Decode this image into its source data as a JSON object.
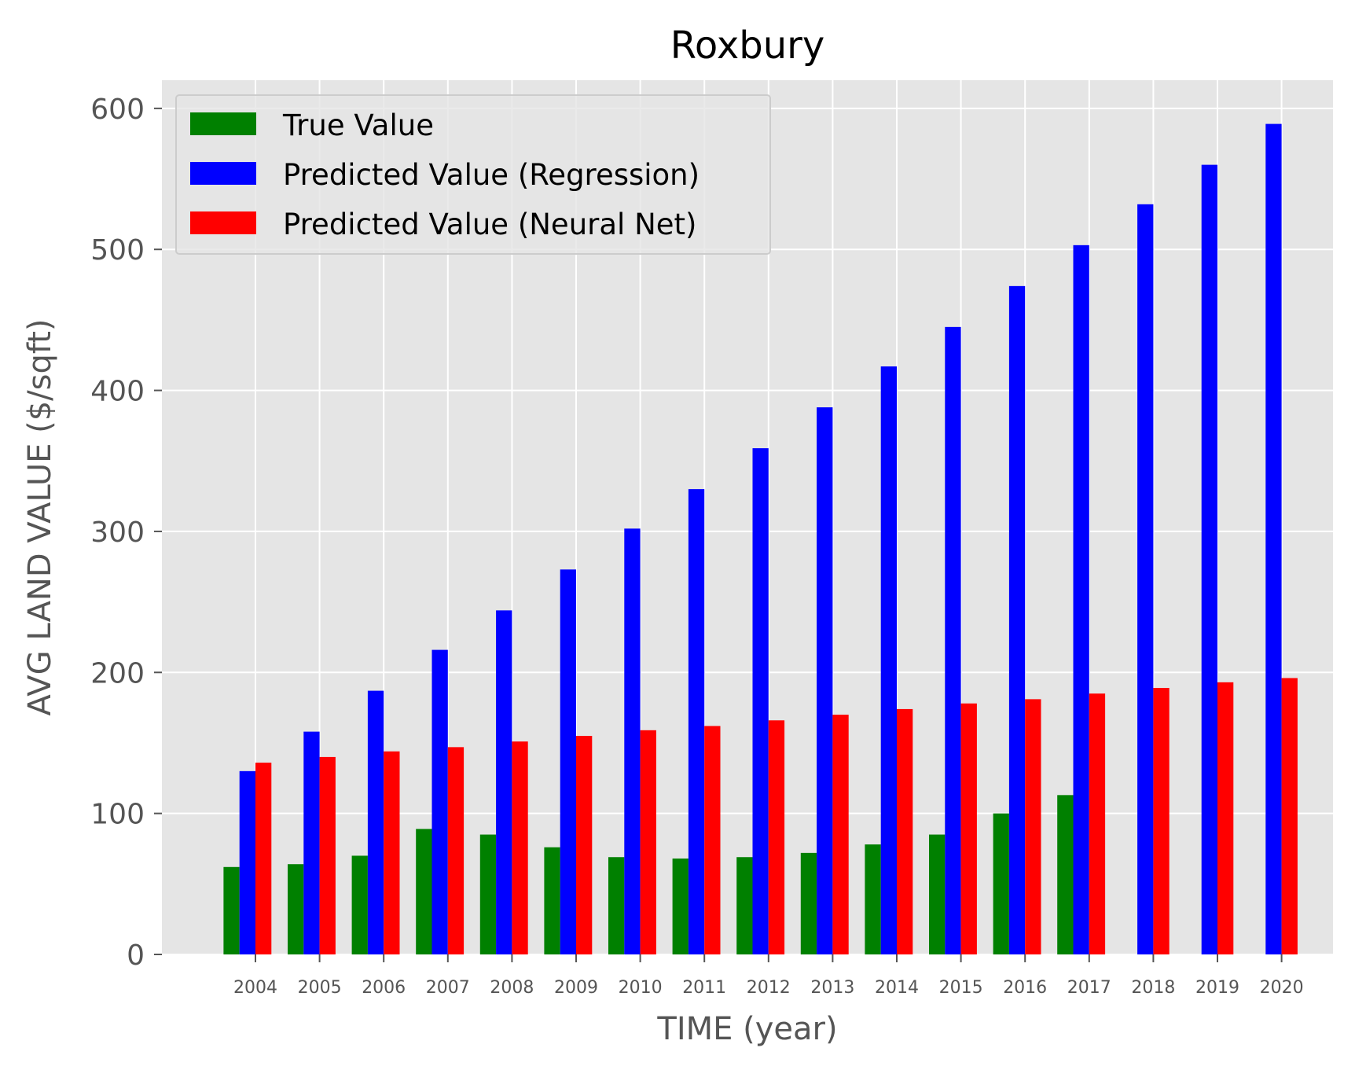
{
  "chart_data": {
    "type": "bar",
    "title": "Roxbury",
    "xlabel": "TIME (year)",
    "ylabel": "AVG LAND VALUE ($/sqft)",
    "categories": [
      "2004",
      "2005",
      "2006",
      "2007",
      "2008",
      "2009",
      "2010",
      "2011",
      "2012",
      "2013",
      "2014",
      "2015",
      "2016",
      "2017",
      "2018",
      "2019",
      "2020"
    ],
    "series": [
      {
        "name": "True Value",
        "color": "#008000",
        "values": [
          62,
          64,
          70,
          89,
          85,
          76,
          69,
          68,
          69,
          72,
          78,
          85,
          100,
          113,
          null,
          null,
          null
        ]
      },
      {
        "name": "Predicted Value (Regression)",
        "color": "#0000ff",
        "values": [
          130,
          158,
          187,
          216,
          244,
          273,
          302,
          330,
          359,
          388,
          417,
          445,
          474,
          503,
          532,
          560,
          589
        ]
      },
      {
        "name": "Predicted Value (Neural Net)",
        "color": "#ff0000",
        "values": [
          136,
          140,
          144,
          147,
          151,
          155,
          159,
          162,
          166,
          170,
          174,
          178,
          181,
          185,
          189,
          193,
          196
        ]
      }
    ],
    "y_ticks": [
      "0",
      "100",
      "200",
      "300",
      "400",
      "500",
      "600"
    ],
    "ylim": [
      0,
      620
    ],
    "grid": true,
    "legend_position": "top-left",
    "background_color": "#e5e5e5",
    "grid_color": "#ffffff"
  }
}
